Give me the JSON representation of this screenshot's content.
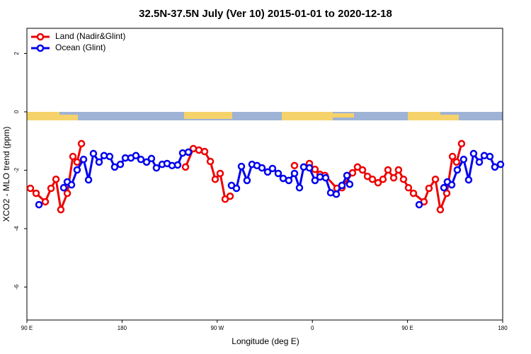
{
  "chart_data": {
    "type": "line",
    "title": "32.5N-37.5N July (Ver 10)   2015-01-01 to 2020-12-18",
    "x_label": "Longitude (deg E)",
    "y_label": "XCO2 - MLO trend (ppm)",
    "xlim": [
      90,
      540
    ],
    "xticks": [
      {
        "value": 90,
        "label": "90 E"
      },
      180,
      {
        "value": 270,
        "label": "90 W"
      },
      {
        "value": 360,
        "label": "0"
      },
      {
        "value": 450,
        "label": "90 E"
      },
      {
        "value": 540,
        "label": "180"
      }
    ],
    "ylim": [
      -7.13,
      2.86
    ],
    "yticks": [
      2,
      0,
      -2,
      -4,
      -6
    ],
    "legend": "top-left",
    "series": [
      {
        "name": "Land (Nadir&Glint)",
        "color": "#ee0000",
        "x": [
          93.3,
          98.7,
          107.4,
          112.8,
          117.5,
          122.1,
          128.2,
          133.5,
          137.5,
          141.6,
          null,
          240.0,
          247.4,
          252.7,
          258.1,
          263.5,
          268.1,
          272.8,
          277.5,
          282.2,
          null,
          343.1,
          null,
          357.2,
          362.5,
          367.2,
          371.9,
          383.3,
          388.0,
          398.0,
          402.7,
          407.4,
          412.1,
          416.8,
          422.1,
          426.8,
          431.5,
          436.9,
          441.5,
          446.2,
          450.9,
          455.6,
          465.6,
          470.3,
          476.4,
          481.0,
          487.1,
          492.5,
          496.4,
          501.1
        ],
        "values": [
          -2.62,
          -2.79,
          -3.08,
          -2.62,
          -2.31,
          -3.35,
          -2.79,
          -1.53,
          -1.72,
          -1.09,
          null,
          -1.89,
          -1.26,
          -1.31,
          -1.36,
          -1.7,
          -2.31,
          -2.11,
          -2.99,
          -2.89,
          null,
          -1.84,
          null,
          -1.77,
          -1.97,
          -2.14,
          -2.18,
          -2.62,
          -2.6,
          -2.09,
          -1.89,
          -1.99,
          -2.21,
          -2.31,
          -2.43,
          -2.31,
          -1.99,
          -2.26,
          -1.99,
          -2.31,
          -2.6,
          -2.79,
          -3.08,
          -2.62,
          -2.31,
          -3.35,
          -2.79,
          -1.53,
          -1.72,
          -1.09
        ]
      },
      {
        "name": "Ocean (Glint)",
        "color": "#0000ee",
        "x": [
          101.4,
          null,
          124.8,
          128.2,
          132.2,
          137.5,
          143.6,
          148.3,
          152.9,
          158.3,
          163.0,
          168.3,
          173.0,
          178.4,
          183.1,
          188.4,
          193.1,
          197.8,
          203.2,
          207.8,
          212.5,
          217.9,
          222.6,
          227.3,
          232.6,
          237.3,
          242.7,
          null,
          283.5,
          288.2,
          292.9,
          298.2,
          302.9,
          307.6,
          312.3,
          317.7,
          322.3,
          327.7,
          332.4,
          337.7,
          343.1,
          347.8,
          351.8,
          357.2,
          362.5,
          367.2,
          372.6,
          377.3,
          382.6,
          388.0,
          392.7,
          395.3,
          null,
          461.0,
          null,
          484.4,
          487.7,
          491.8,
          497.1,
          503.1,
          507.8,
          512.5,
          517.9,
          522.6,
          527.9,
          532.6,
          538.0
        ],
        "values": [
          -3.18,
          null,
          -2.6,
          -2.4,
          -2.5,
          -1.99,
          -1.63,
          -2.33,
          -1.43,
          -1.72,
          -1.5,
          -1.53,
          -1.89,
          -1.8,
          -1.58,
          -1.58,
          -1.5,
          -1.63,
          -1.72,
          -1.6,
          -1.92,
          -1.8,
          -1.77,
          -1.84,
          -1.82,
          -1.41,
          -1.38,
          null,
          -2.52,
          -2.62,
          -1.87,
          -2.35,
          -1.8,
          -1.84,
          -1.92,
          -2.06,
          -1.94,
          -2.11,
          -2.28,
          -2.35,
          -2.11,
          -2.6,
          -1.89,
          -1.92,
          -2.35,
          -2.23,
          -2.26,
          -2.77,
          -2.82,
          -2.52,
          -2.18,
          -2.48,
          null,
          -3.18,
          null,
          -2.6,
          -2.4,
          -2.5,
          -1.99,
          -1.63,
          -2.33,
          -1.43,
          -1.72,
          -1.5,
          -1.53,
          -1.89,
          -1.8
        ]
      }
    ]
  }
}
